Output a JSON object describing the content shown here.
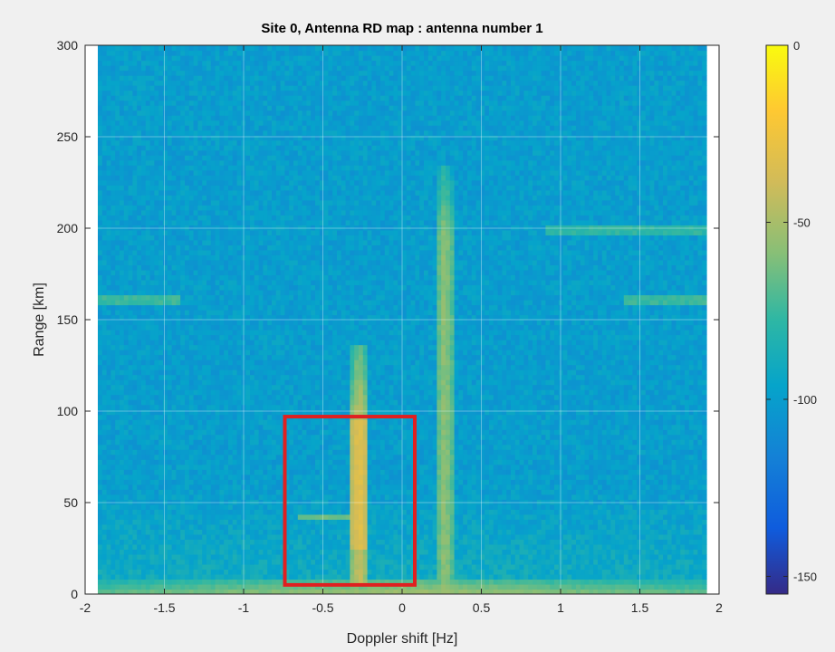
{
  "chart_data": {
    "type": "heatmap",
    "title": "Site 0, Antenna RD map : antenna number 1",
    "xlabel": "Doppler shift [Hz]",
    "ylabel": "Range [km]",
    "xlim": [
      -2,
      2
    ],
    "ylim": [
      0,
      300
    ],
    "x_data_extent": [
      -1.92,
      1.92
    ],
    "xticks": [
      -2,
      -1.5,
      -1,
      -0.5,
      0,
      0.5,
      1,
      1.5,
      2
    ],
    "yticks": [
      0,
      50,
      100,
      150,
      200,
      250,
      300
    ],
    "grid": true,
    "colormap": "parula",
    "colorbar": {
      "range": [
        -155,
        0
      ],
      "ticks": [
        0,
        -50,
        -100,
        -150
      ]
    },
    "background_level_db": -100,
    "features": [
      {
        "kind": "vertical_band",
        "x": -0.27,
        "width": 0.05,
        "y_range": [
          5,
          135
        ],
        "peak_db": -40
      },
      {
        "kind": "vertical_band",
        "x": 0.27,
        "width": 0.06,
        "y_range": [
          0,
          235
        ],
        "peak_db": -55
      },
      {
        "kind": "hot_spot",
        "x_range": [
          -0.32,
          -0.22
        ],
        "y_range": [
          25,
          95
        ],
        "peak_db": -30
      },
      {
        "kind": "near_zero_range_band",
        "x_range": [
          -1.92,
          1.92
        ],
        "y_range": [
          0,
          8
        ],
        "peak_db": -50
      },
      {
        "kind": "horizontal_line",
        "y": 160,
        "x_range": [
          -1.92,
          -1.4
        ],
        "peak_db": -75
      },
      {
        "kind": "horizontal_line",
        "y": 160,
        "x_range": [
          1.4,
          1.92
        ],
        "peak_db": -75
      },
      {
        "kind": "horizontal_line",
        "y": 200,
        "x_range": [
          0.9,
          1.92
        ],
        "peak_db": -78
      },
      {
        "kind": "horizontal_line",
        "y": 42,
        "x_range": [
          -0.65,
          -0.3
        ],
        "peak_db": -65
      }
    ],
    "annotations": [
      {
        "kind": "rectangle",
        "color": "#e02020",
        "x_range": [
          -0.74,
          0.08
        ],
        "y_range": [
          5,
          97
        ]
      }
    ]
  }
}
